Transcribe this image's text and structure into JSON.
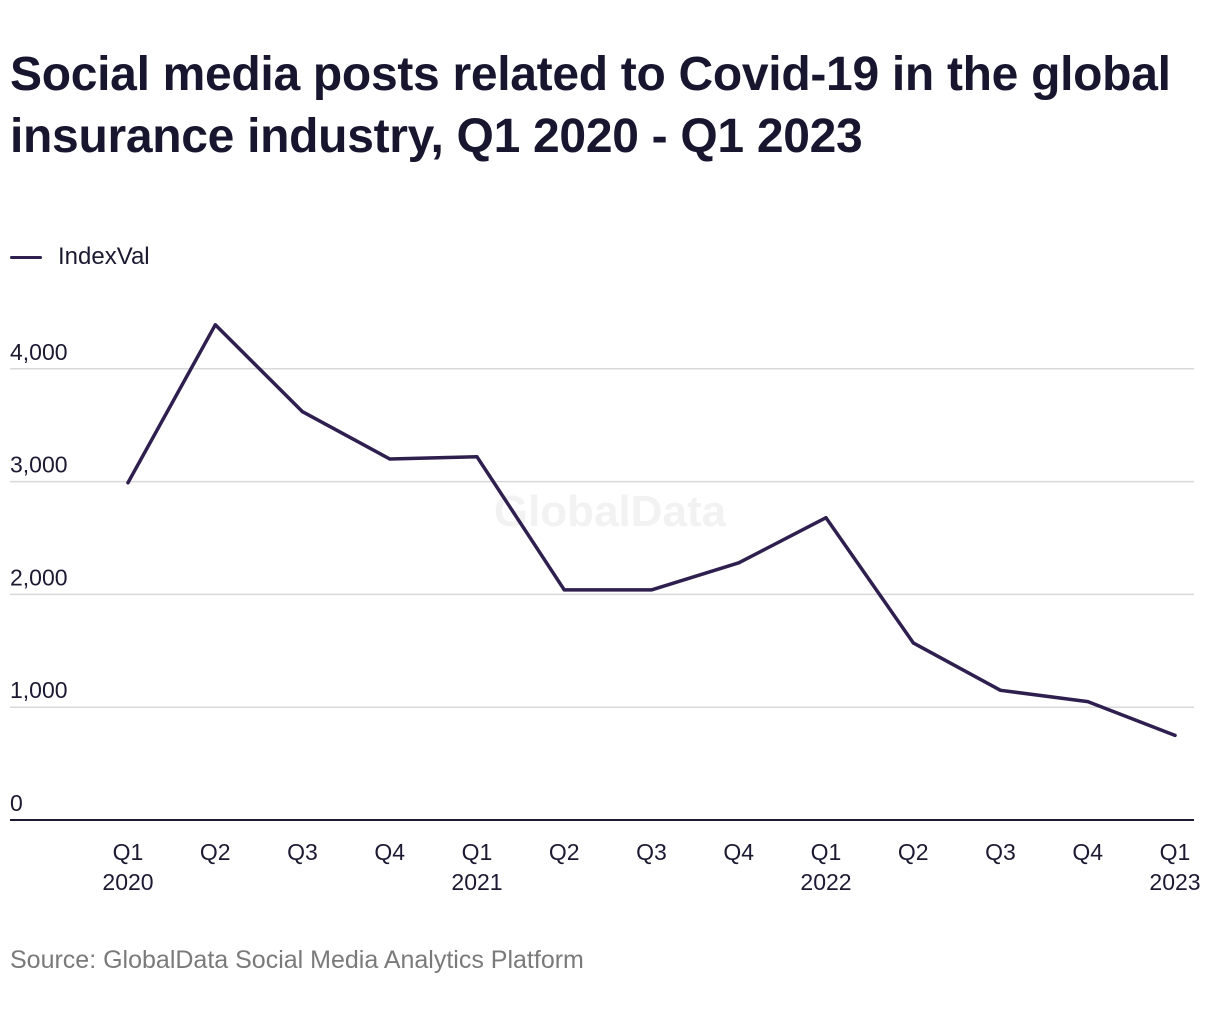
{
  "chart_data": {
    "type": "line",
    "title": "Social media posts related to Covid-19 in the global insurance industry, Q1 2020 - Q1 2023",
    "categories": [
      [
        "Q1",
        "2020"
      ],
      [
        "Q2",
        ""
      ],
      [
        "Q3",
        ""
      ],
      [
        "Q4",
        ""
      ],
      [
        "Q1",
        "2021"
      ],
      [
        "Q2",
        ""
      ],
      [
        "Q3",
        ""
      ],
      [
        "Q4",
        ""
      ],
      [
        "Q1",
        "2022"
      ],
      [
        "Q2",
        ""
      ],
      [
        "Q3",
        ""
      ],
      [
        "Q4",
        ""
      ],
      [
        "Q1",
        "2023"
      ]
    ],
    "series": [
      {
        "name": "IndexVal",
        "color": "#2e1f4f",
        "values": [
          2990,
          4390,
          3620,
          3200,
          3220,
          2040,
          2040,
          2280,
          2680,
          1570,
          1150,
          1050,
          750
        ]
      }
    ],
    "yticks": [
      0,
      1000,
      2000,
      3000,
      4000
    ],
    "ytick_labels": [
      "0",
      "1,000",
      "2,000",
      "3,000",
      "4,000"
    ],
    "ylim": [
      0,
      4600
    ],
    "grid": true,
    "legend_position": "top-left",
    "watermark": "GlobalData",
    "source": "Source: GlobalData Social Media Analytics Platform"
  }
}
